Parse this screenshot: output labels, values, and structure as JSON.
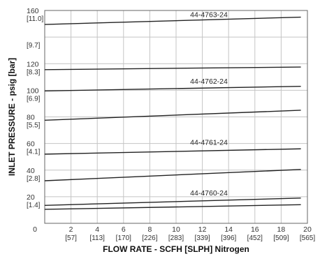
{
  "chart_data": {
    "type": "line",
    "xlabel": "FLOW RATE - SCFH [SLPH] Nitrogen",
    "ylabel": "INLET PRESSURE - psig [bar]",
    "xlim": [
      0,
      20
    ],
    "ylim": [
      0,
      160
    ],
    "grid": true,
    "x_ticks": [
      {
        "value": 0,
        "label": "0",
        "alt": ""
      },
      {
        "value": 2,
        "label": "2",
        "alt": "[57]"
      },
      {
        "value": 4,
        "label": "4",
        "alt": "[113]"
      },
      {
        "value": 6,
        "label": "6",
        "alt": "[170]"
      },
      {
        "value": 8,
        "label": "8",
        "alt": "[226]"
      },
      {
        "value": 10,
        "label": "10",
        "alt": "[283]"
      },
      {
        "value": 12,
        "label": "12",
        "alt": "[339]"
      },
      {
        "value": 14,
        "label": "14",
        "alt": "[396]"
      },
      {
        "value": 16,
        "label": "16",
        "alt": "[452]"
      },
      {
        "value": 18,
        "label": "18",
        "alt": "[509]"
      },
      {
        "value": 20,
        "label": "20",
        "alt": "[565]"
      }
    ],
    "y_ticks": [
      {
        "value": 0,
        "label": "",
        "alt": ""
      },
      {
        "value": 20,
        "label": "20",
        "alt": "[1.4]"
      },
      {
        "value": 40,
        "label": "40",
        "alt": "[2.8]"
      },
      {
        "value": 60,
        "label": "60",
        "alt": "[4.1]"
      },
      {
        "value": 80,
        "label": "80",
        "alt": "[5.5]"
      },
      {
        "value": 100,
        "label": "100",
        "alt": "[6.9]"
      },
      {
        "value": 120,
        "label": "120",
        "alt": "[8.3]"
      },
      {
        "value": 140,
        "label": "",
        "alt": "[9.7]"
      },
      {
        "value": 160,
        "label": "160",
        "alt": "[11.0]"
      }
    ],
    "series": [
      {
        "x": [
          0,
          19.5
        ],
        "y": [
          149.5,
          155
        ]
      },
      {
        "x": [
          0,
          19.5
        ],
        "y": [
          115.5,
          117.5
        ]
      },
      {
        "x": [
          0,
          19.5
        ],
        "y": [
          99.5,
          103
        ]
      },
      {
        "x": [
          0,
          19.5
        ],
        "y": [
          77.5,
          85
        ]
      },
      {
        "x": [
          0,
          19.5
        ],
        "y": [
          52,
          56
        ]
      },
      {
        "x": [
          0,
          19.5
        ],
        "y": [
          32,
          40.5
        ]
      },
      {
        "x": [
          0,
          19.5
        ],
        "y": [
          13.5,
          19
        ]
      },
      {
        "x": [
          0,
          19.5
        ],
        "y": [
          10.5,
          14
        ]
      }
    ],
    "annotations": [
      {
        "text": "44-4763-24",
        "x": 12.5,
        "y": 157
      },
      {
        "text": "44-4762-24",
        "x": 12.5,
        "y": 107
      },
      {
        "text": "44-4761-24",
        "x": 12.5,
        "y": 61
      },
      {
        "text": "44-4760-24",
        "x": 12.5,
        "y": 23
      }
    ]
  }
}
